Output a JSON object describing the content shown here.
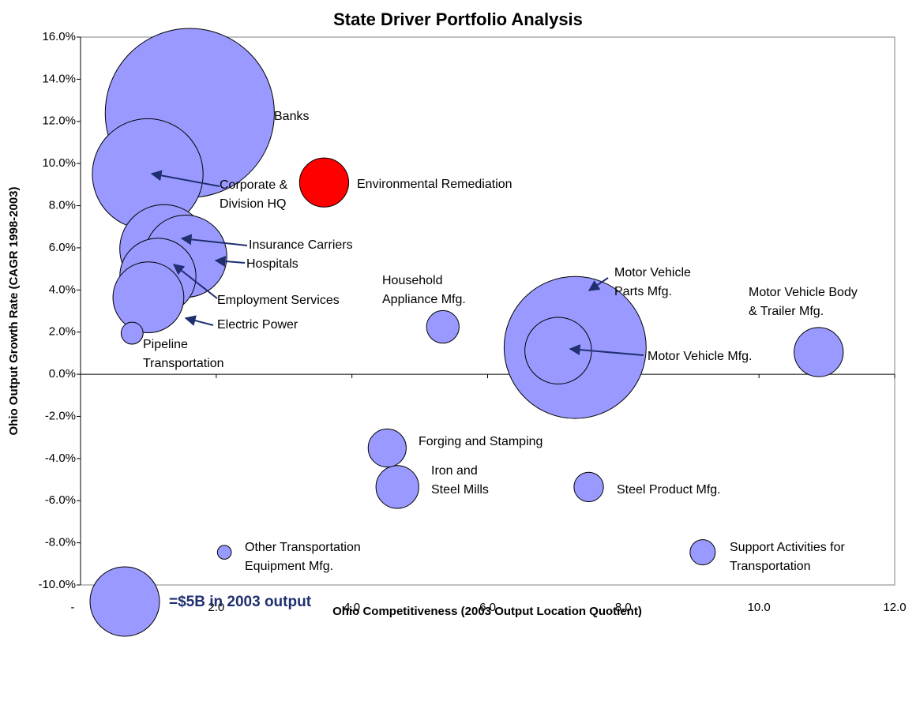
{
  "chart_data": {
    "type": "bubble",
    "title": "State Driver Portfolio Analysis",
    "x_label": "Ohio Competitiveness (2003 Output Location Quotient)",
    "y_label": "Ohio Output Growth Rate (CAGR 1998-2003)",
    "xlim": [
      0,
      12
    ],
    "ylim": [
      -10,
      16
    ],
    "xticks": [
      {
        "value": 0,
        "label": "-"
      },
      {
        "value": 2,
        "label": "2.0"
      },
      {
        "value": 4,
        "label": "4.0"
      },
      {
        "value": 6,
        "label": "6.0"
      },
      {
        "value": 8,
        "label": "8.0"
      },
      {
        "value": 10,
        "label": "10.0"
      },
      {
        "value": 12,
        "label": "12.0"
      }
    ],
    "yticks": [
      {
        "value": 16,
        "label": "16.0%"
      },
      {
        "value": 14,
        "label": "14.0%"
      },
      {
        "value": 12,
        "label": "12.0%"
      },
      {
        "value": 10,
        "label": "10.0%"
      },
      {
        "value": 8,
        "label": "8.0%"
      },
      {
        "value": 6,
        "label": "6.0%"
      },
      {
        "value": 4,
        "label": "4.0%"
      },
      {
        "value": 2,
        "label": "2.0%"
      },
      {
        "value": 0,
        "label": "0.0%"
      },
      {
        "value": -2,
        "label": "-2.0%"
      },
      {
        "value": -4,
        "label": "-4.0%"
      },
      {
        "value": -6,
        "label": "-6.0%"
      },
      {
        "value": -8,
        "label": "-8.0%"
      },
      {
        "value": -10,
        "label": "-10.0%"
      }
    ],
    "points": [
      {
        "label": [
          "Banks"
        ],
        "x": 1.61,
        "y": 12.4,
        "size": 29.6,
        "color": "#9999ff"
      },
      {
        "label": [
          "Corporate &",
          "Division HQ"
        ],
        "x": 0.99,
        "y": 9.5,
        "size": 12.7,
        "color": "#9999ff"
      },
      {
        "label": [
          "Environmental Remediation"
        ],
        "x": 3.59,
        "y": 9.1,
        "size": 2.5,
        "color": "#ff0000"
      },
      {
        "label": [
          "Insurance Carriers"
        ],
        "x": 1.23,
        "y": 5.95,
        "size": 8.1,
        "color": "#9999ff"
      },
      {
        "label": [
          "Hospitals"
        ],
        "x": 1.55,
        "y": 5.6,
        "size": 7.0,
        "color": "#9999ff"
      },
      {
        "label": [
          "Employment Services"
        ],
        "x": 1.14,
        "y": 4.65,
        "size": 6.0,
        "color": "#9999ff"
      },
      {
        "label": [
          "Electric Power"
        ],
        "x": 1.0,
        "y": 3.65,
        "size": 5.2,
        "color": "#9999ff"
      },
      {
        "label": [
          "Pipeline",
          "Transportation"
        ],
        "x": 0.76,
        "y": 1.95,
        "size": 0.5,
        "color": "#9999ff"
      },
      {
        "label": [
          "Household",
          "Appliance Mfg."
        ],
        "x": 5.34,
        "y": 2.25,
        "size": 1.1,
        "color": "#9999ff"
      },
      {
        "label": [
          "Motor Vehicle",
          "Parts Mfg."
        ],
        "x": 7.29,
        "y": 1.27,
        "size": 20.9,
        "color": "#9999ff"
      },
      {
        "label": [
          "Motor Vehicle Mfg."
        ],
        "x": 7.04,
        "y": 1.12,
        "size": 4.6,
        "color": "#9999ff"
      },
      {
        "label": [
          "Motor Vehicle Body",
          "& Trailer Mfg."
        ],
        "x": 10.88,
        "y": 1.05,
        "size": 2.5,
        "color": "#9999ff"
      },
      {
        "label": [
          "Forging and Stamping"
        ],
        "x": 4.52,
        "y": -3.5,
        "size": 1.5,
        "color": "#9999ff"
      },
      {
        "label": [
          "Iron and",
          "Steel Mills"
        ],
        "x": 4.67,
        "y": -5.35,
        "size": 1.9,
        "color": "#9999ff"
      },
      {
        "label": [
          "Steel Product Mfg."
        ],
        "x": 7.49,
        "y": -5.35,
        "size": 0.9,
        "color": "#9999ff"
      },
      {
        "label": [
          "Other Transportation",
          "Equipment Mfg."
        ],
        "x": 2.12,
        "y": -8.45,
        "size": 0.2,
        "color": "#9999ff"
      },
      {
        "label": [
          "Support Activities for",
          "Transportation"
        ],
        "x": 9.17,
        "y": -8.45,
        "size": 0.66,
        "color": "#9999ff"
      }
    ],
    "size_legend": {
      "size": 5,
      "label": "=$5B in 2003 output",
      "color": "#9999ff"
    }
  }
}
